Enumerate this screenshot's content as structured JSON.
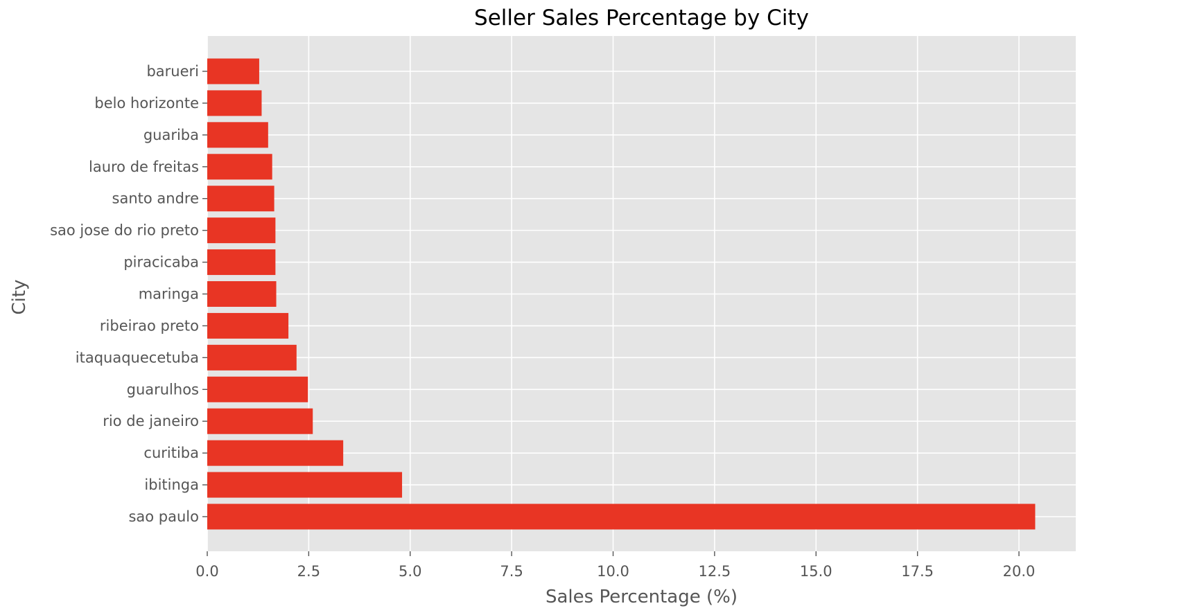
{
  "colors": {
    "bar": "#e83524",
    "plot_background": "#e5e5e5",
    "grid": "#ffffff",
    "tick_text": "#555555",
    "label_text": "#555555",
    "title_text": "#000000"
  },
  "chart_data": {
    "type": "bar",
    "orientation": "horizontal",
    "title": "Seller Sales Percentage by City",
    "xlabel": "Sales Percentage (%)",
    "ylabel": "City",
    "categories": [
      "sao paulo",
      "ibitinga",
      "curitiba",
      "rio de janeiro",
      "guarulhos",
      "itaquaquecetuba",
      "ribeirao preto",
      "maringa",
      "piracicaba",
      "sao jose do rio preto",
      "santo andre",
      "lauro de freitas",
      "guariba",
      "belo horizonte",
      "barueri"
    ],
    "values": [
      20.4,
      4.8,
      3.35,
      2.6,
      2.48,
      2.2,
      2.0,
      1.7,
      1.68,
      1.68,
      1.65,
      1.6,
      1.5,
      1.34,
      1.28
    ],
    "xlim": [
      0,
      21.4
    ],
    "xticks": [
      "0.0",
      "2.5",
      "5.0",
      "7.5",
      "10.0",
      "12.5",
      "15.0",
      "17.5",
      "20.0"
    ],
    "grid": true,
    "legend": "none"
  }
}
